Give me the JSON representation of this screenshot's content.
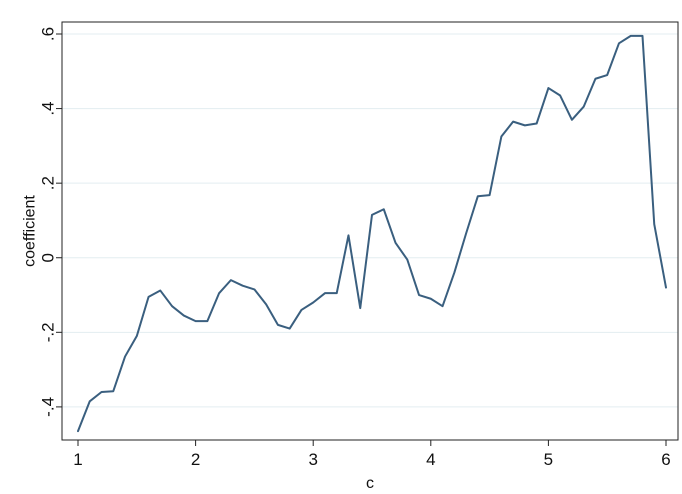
{
  "chart_data": {
    "type": "line",
    "title": "",
    "xlabel": "c",
    "ylabel": "coefficient",
    "xlim": [
      1,
      6
    ],
    "ylim": [
      -0.47,
      0.6
    ],
    "x_ticks": [
      1,
      2,
      3,
      4,
      5,
      6
    ],
    "x_tick_labels": [
      "1",
      "2",
      "3",
      "4",
      "5",
      "6"
    ],
    "y_ticks": [
      -0.4,
      -0.2,
      0,
      0.2,
      0.4,
      0.6
    ],
    "y_tick_labels": [
      "-.4",
      "-.2",
      "0",
      ".2",
      ".4",
      ".6"
    ],
    "grid": "horizontal",
    "line_color": "#3a5f7f",
    "grid_color": "#e3edf0",
    "series": [
      {
        "x": [
          1.0,
          1.1,
          1.2,
          1.3,
          1.4,
          1.5,
          1.6,
          1.7,
          1.8,
          1.9,
          2.0,
          2.1,
          2.2,
          2.3,
          2.4,
          2.5,
          2.6,
          2.7,
          2.8,
          2.9,
          3.0,
          3.1,
          3.2,
          3.3,
          3.4,
          3.5,
          3.6,
          3.7,
          3.8,
          3.9,
          4.0,
          4.1,
          4.2,
          4.3,
          4.4,
          4.5,
          4.6,
          4.7,
          4.8,
          4.9,
          5.0,
          5.1,
          5.2,
          5.3,
          5.4,
          5.5,
          5.6,
          5.7,
          5.8,
          5.9,
          6.0
        ],
        "values": [
          -0.465,
          -0.385,
          -0.36,
          -0.358,
          -0.265,
          -0.21,
          -0.105,
          -0.088,
          -0.13,
          -0.155,
          -0.17,
          -0.17,
          -0.095,
          -0.06,
          -0.075,
          -0.085,
          -0.125,
          -0.18,
          -0.19,
          -0.14,
          -0.12,
          -0.095,
          -0.095,
          0.06,
          -0.135,
          0.115,
          0.13,
          0.04,
          -0.005,
          -0.1,
          -0.11,
          -0.13,
          -0.04,
          0.065,
          0.165,
          0.168,
          0.325,
          0.365,
          0.355,
          0.36,
          0.455,
          0.435,
          0.37,
          0.405,
          0.48,
          0.49,
          0.575,
          0.595,
          0.595,
          0.09,
          -0.08
        ]
      }
    ]
  }
}
